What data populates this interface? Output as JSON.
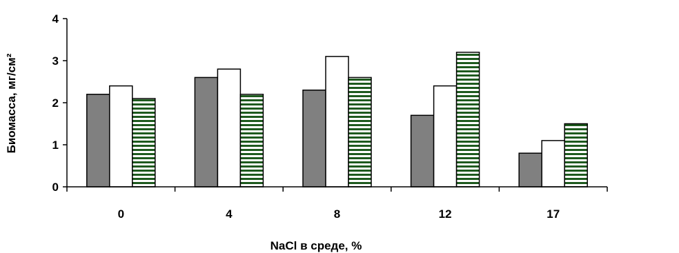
{
  "chart_data": {
    "type": "bar",
    "title": "",
    "xlabel": "NaCl в среде, %",
    "ylabel": "Биомасса, мг/см²",
    "categories": [
      "0",
      "4",
      "8",
      "12",
      "17"
    ],
    "series": [
      {
        "values": [
          2.2,
          2.6,
          2.3,
          1.7,
          0.8
        ],
        "fill": "gray"
      },
      {
        "values": [
          2.4,
          2.8,
          3.1,
          2.4,
          1.1
        ],
        "fill": "white"
      },
      {
        "values": [
          2.1,
          2.2,
          2.6,
          3.2,
          1.5
        ],
        "fill": "green-stripes"
      }
    ],
    "ylim": [
      0,
      4
    ],
    "yticks": [
      "0",
      "1",
      "2",
      "3",
      "4"
    ],
    "grid": false,
    "legend": "none",
    "colors": {
      "gray": "#808080",
      "white": "#ffffff",
      "stripe": "#1e5a1e",
      "outline": "#000000"
    }
  }
}
